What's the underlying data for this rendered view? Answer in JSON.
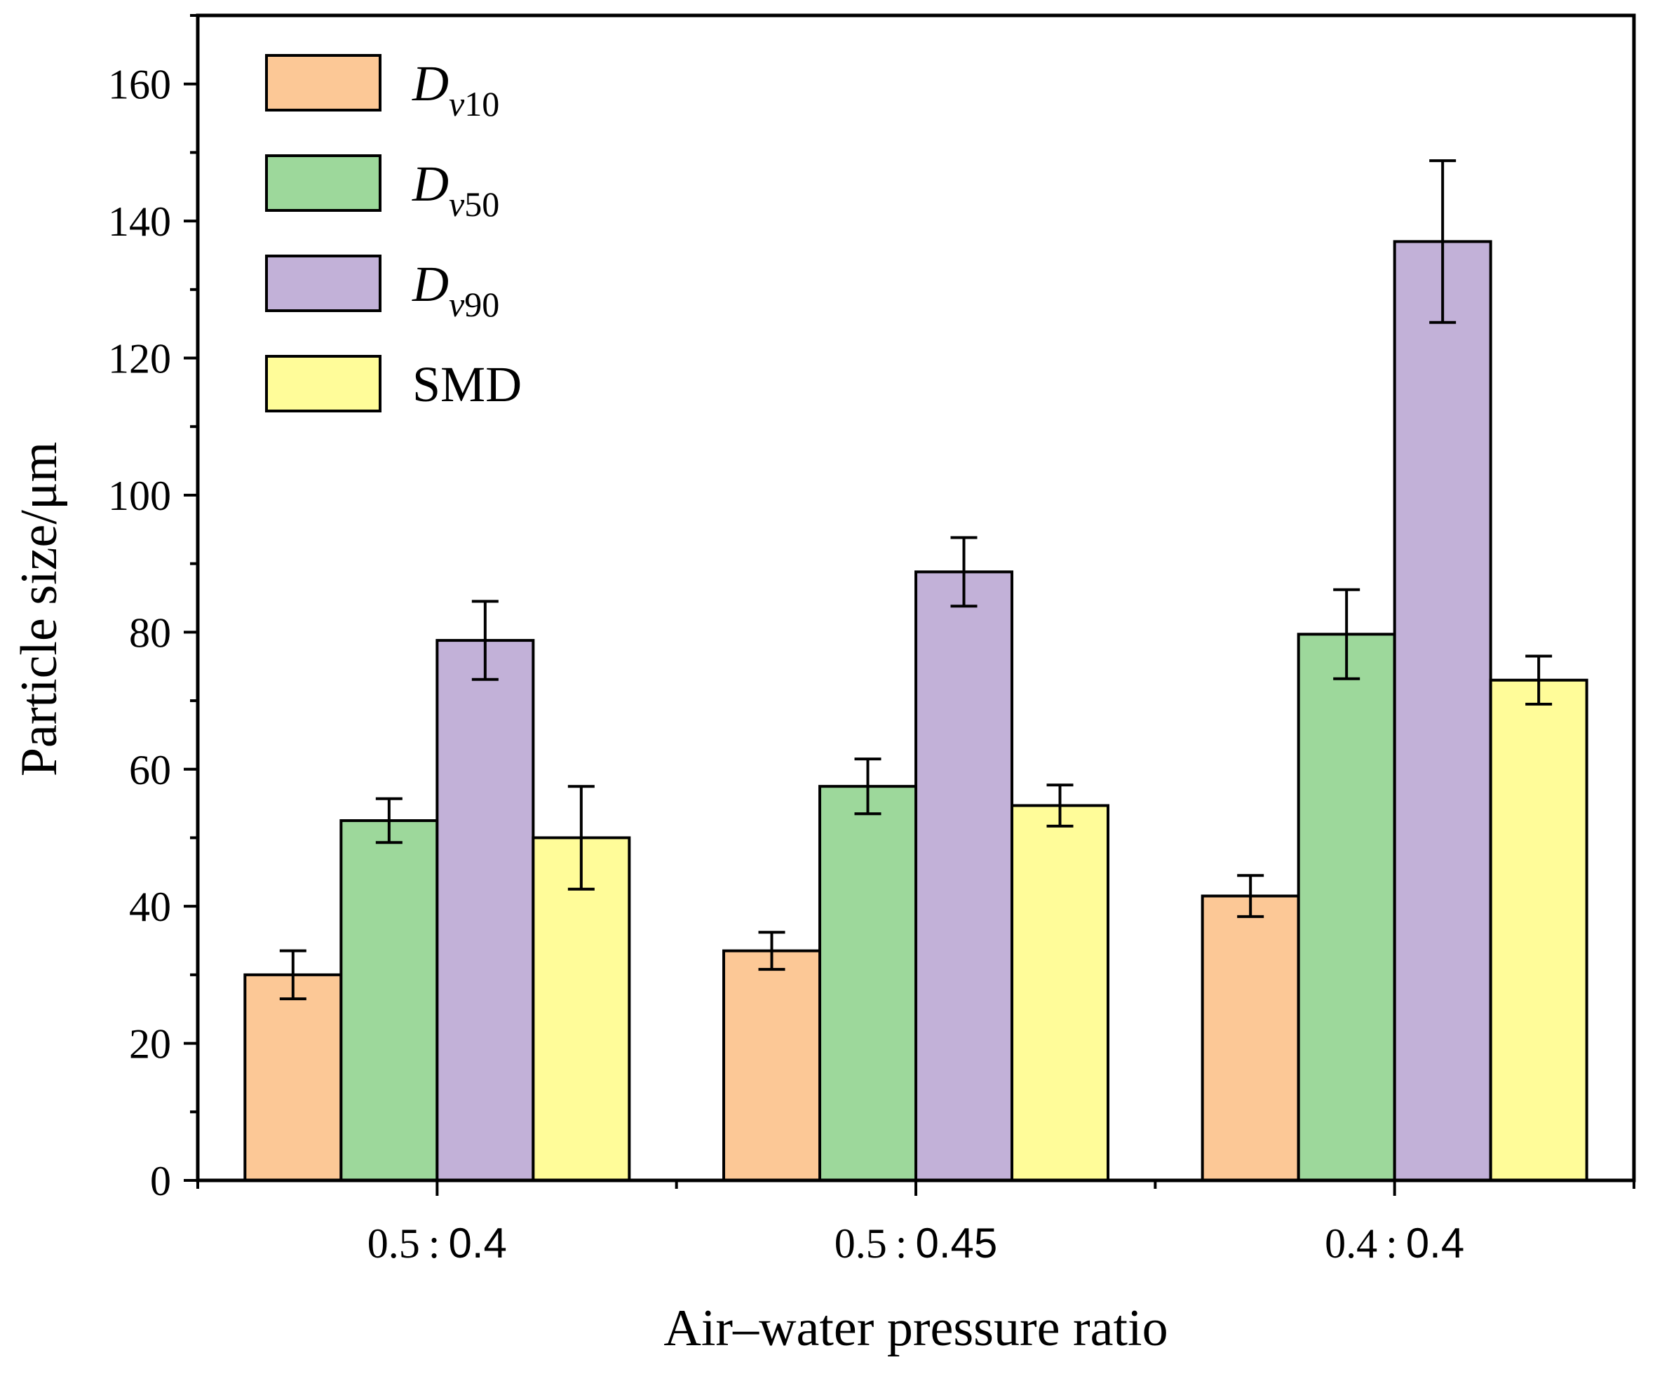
{
  "chart_data": {
    "type": "bar",
    "title": "",
    "xlabel": "Air–water pressure ratio",
    "ylabel": "Particle size/μm",
    "ylim": [
      0,
      170
    ],
    "yticks": [
      0,
      20,
      40,
      60,
      80,
      100,
      120,
      140,
      160
    ],
    "grid": false,
    "legend_position": "top-left",
    "categories": [
      {
        "left": "0.5 : ",
        "right": "0.4"
      },
      {
        "left": "0.5 : ",
        "right": "0.45"
      },
      {
        "left": "0.4 : ",
        "right": "0.4"
      }
    ],
    "series": [
      {
        "name": "D",
        "subscript": "v10",
        "color": "#fcc896",
        "values": [
          30.0,
          33.5,
          41.5
        ],
        "errors": [
          3.5,
          2.7,
          3.0
        ]
      },
      {
        "name": "D",
        "subscript": "v50",
        "color": "#9dd89b",
        "values": [
          52.5,
          57.5,
          79.7
        ],
        "errors": [
          3.2,
          4.0,
          6.5
        ]
      },
      {
        "name": "D",
        "subscript": "v90",
        "color": "#c2b1d8",
        "values": [
          78.8,
          88.8,
          137.0
        ],
        "errors": [
          5.7,
          5.0,
          11.8
        ]
      },
      {
        "name": "SMD",
        "subscript": "",
        "color": "#fffc99",
        "values": [
          50.0,
          54.7,
          73.0
        ],
        "errors": [
          7.5,
          3.0,
          3.5
        ]
      }
    ]
  }
}
